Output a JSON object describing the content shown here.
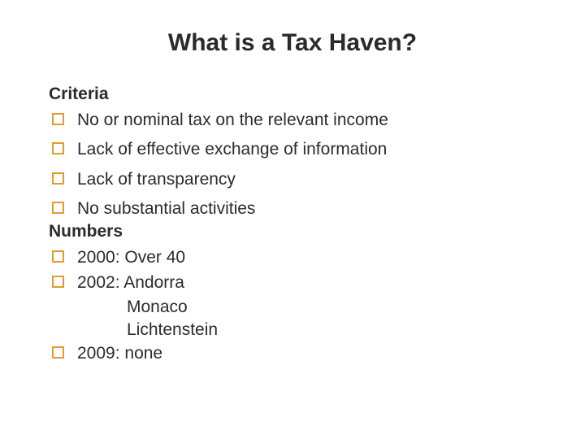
{
  "title": "What is a Tax Haven?",
  "bullet_color": "#e39a2f",
  "text_color": "#2b2b2b",
  "sections": {
    "criteria": {
      "heading": "Criteria",
      "items": [
        "No or nominal tax on the relevant income",
        "Lack of effective exchange of information",
        "Lack of transparency",
        "No substantial activities"
      ]
    },
    "numbers": {
      "heading": "Numbers",
      "items": [
        {
          "text": "2000: Over 40"
        },
        {
          "text": "2002: Andorra",
          "sub": [
            "Monaco",
            "Lichtenstein"
          ]
        },
        {
          "text": "2009: none"
        }
      ]
    }
  },
  "fontsize_title": 30,
  "fontsize_body": 21
}
